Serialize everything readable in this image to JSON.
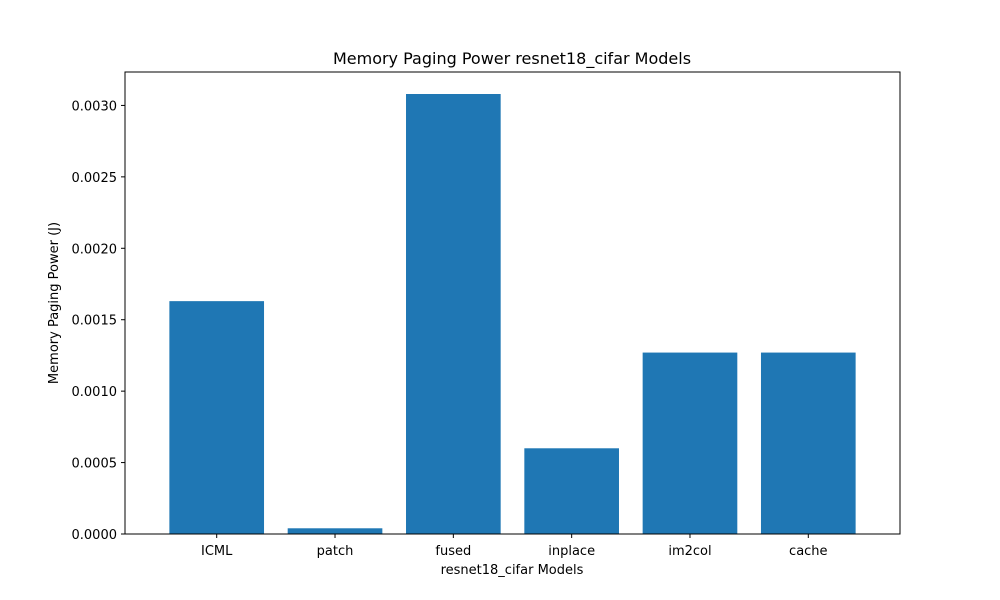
{
  "chart_data": {
    "type": "bar",
    "title": "Memory Paging Power resnet18_cifar Models",
    "xlabel": "resnet18_cifar Models",
    "ylabel": "Memory Paging Power (J)",
    "categories": [
      "ICML",
      "patch",
      "fused",
      "inplace",
      "im2col",
      "cache"
    ],
    "values": [
      0.00163,
      4e-05,
      0.00308,
      0.0006,
      0.00127,
      0.00127
    ],
    "ylim": [
      0,
      0.003234
    ],
    "yticks": [
      0.0,
      0.0005,
      0.001,
      0.0015,
      0.002,
      0.0025,
      0.003
    ],
    "ytick_labels": [
      "0.0000",
      "0.0005",
      "0.0010",
      "0.0015",
      "0.0020",
      "0.0025",
      "0.0030"
    ],
    "grid": false,
    "bar_color": "#1f77b4"
  }
}
